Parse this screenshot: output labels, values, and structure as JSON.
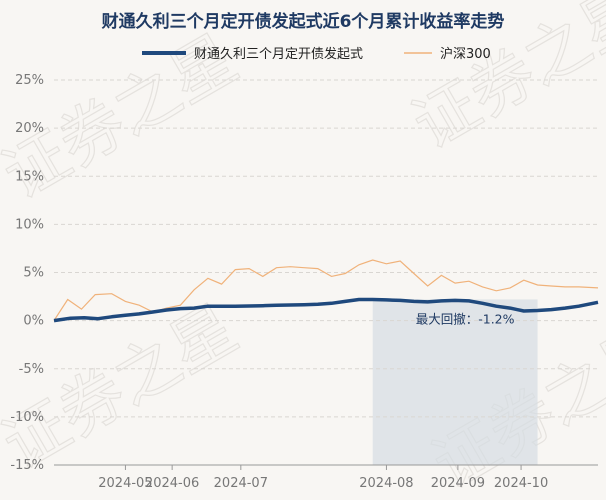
{
  "chart_data": {
    "type": "line",
    "title": "财通久利三个月定开债发起式近6个月累计收益率走势",
    "legend": [
      "财通久利三个月定开债发起式",
      "沪深300"
    ],
    "legend_position": "top-center",
    "y_ticks": [
      "25%",
      "20%",
      "15%",
      "10%",
      "5%",
      "0%",
      "-5%",
      "-10%",
      "-15%"
    ],
    "ylim": [
      -15,
      25
    ],
    "x_ticks": [
      "2024-05",
      "2024-06",
      "2024-07",
      "2024-08",
      "2024-09",
      "2024-10"
    ],
    "x_tick_positions": [
      26,
      43,
      68,
      121,
      147,
      170
    ],
    "xlim": [
      0,
      198
    ],
    "grid": "horizontal dashed",
    "watermark": "证券之星",
    "series": [
      {
        "name": "财通久利三个月定开债发起式",
        "color": "#1f497d",
        "x": [
          0,
          6,
          11,
          16,
          21,
          26,
          31,
          36,
          41,
          46,
          51,
          56,
          61,
          66,
          71,
          76,
          81,
          86,
          91,
          96,
          101,
          106,
          111,
          116,
          121,
          126,
          131,
          136,
          141,
          146,
          151,
          156,
          161,
          166,
          171,
          176,
          181,
          186,
          191,
          198
        ],
        "values": [
          0.0,
          0.25,
          0.3,
          0.2,
          0.4,
          0.55,
          0.7,
          0.9,
          1.1,
          1.25,
          1.3,
          1.5,
          1.5,
          1.5,
          1.52,
          1.55,
          1.6,
          1.62,
          1.65,
          1.7,
          1.8,
          2.0,
          2.2,
          2.2,
          2.15,
          2.1,
          2.0,
          1.95,
          2.05,
          2.1,
          2.05,
          1.8,
          1.5,
          1.3,
          1.0,
          1.05,
          1.15,
          1.3,
          1.5,
          1.9
        ]
      },
      {
        "name": "沪深300",
        "color": "#f0b27a",
        "x": [
          0,
          5,
          10,
          15,
          21,
          26,
          31,
          36,
          41,
          46,
          51,
          56,
          61,
          66,
          71,
          76,
          81,
          86,
          91,
          96,
          101,
          106,
          111,
          116,
          121,
          126,
          131,
          136,
          141,
          146,
          151,
          156,
          161,
          166,
          171,
          176,
          181,
          186,
          191,
          198
        ],
        "values": [
          0.0,
          2.2,
          1.2,
          2.7,
          2.8,
          2.0,
          1.6,
          0.9,
          1.3,
          1.6,
          3.2,
          4.4,
          3.8,
          5.3,
          5.4,
          4.6,
          5.5,
          5.6,
          5.5,
          5.4,
          4.6,
          4.9,
          5.8,
          6.3,
          5.9,
          6.2,
          4.9,
          3.6,
          4.7,
          3.9,
          4.1,
          3.5,
          3.1,
          3.4,
          4.2,
          3.7,
          3.6,
          3.5,
          3.5,
          3.4
        ]
      }
    ],
    "max_drawdown": {
      "label": "最大回撤：-1.2%",
      "x_start": 116,
      "x_end": 176
    }
  }
}
